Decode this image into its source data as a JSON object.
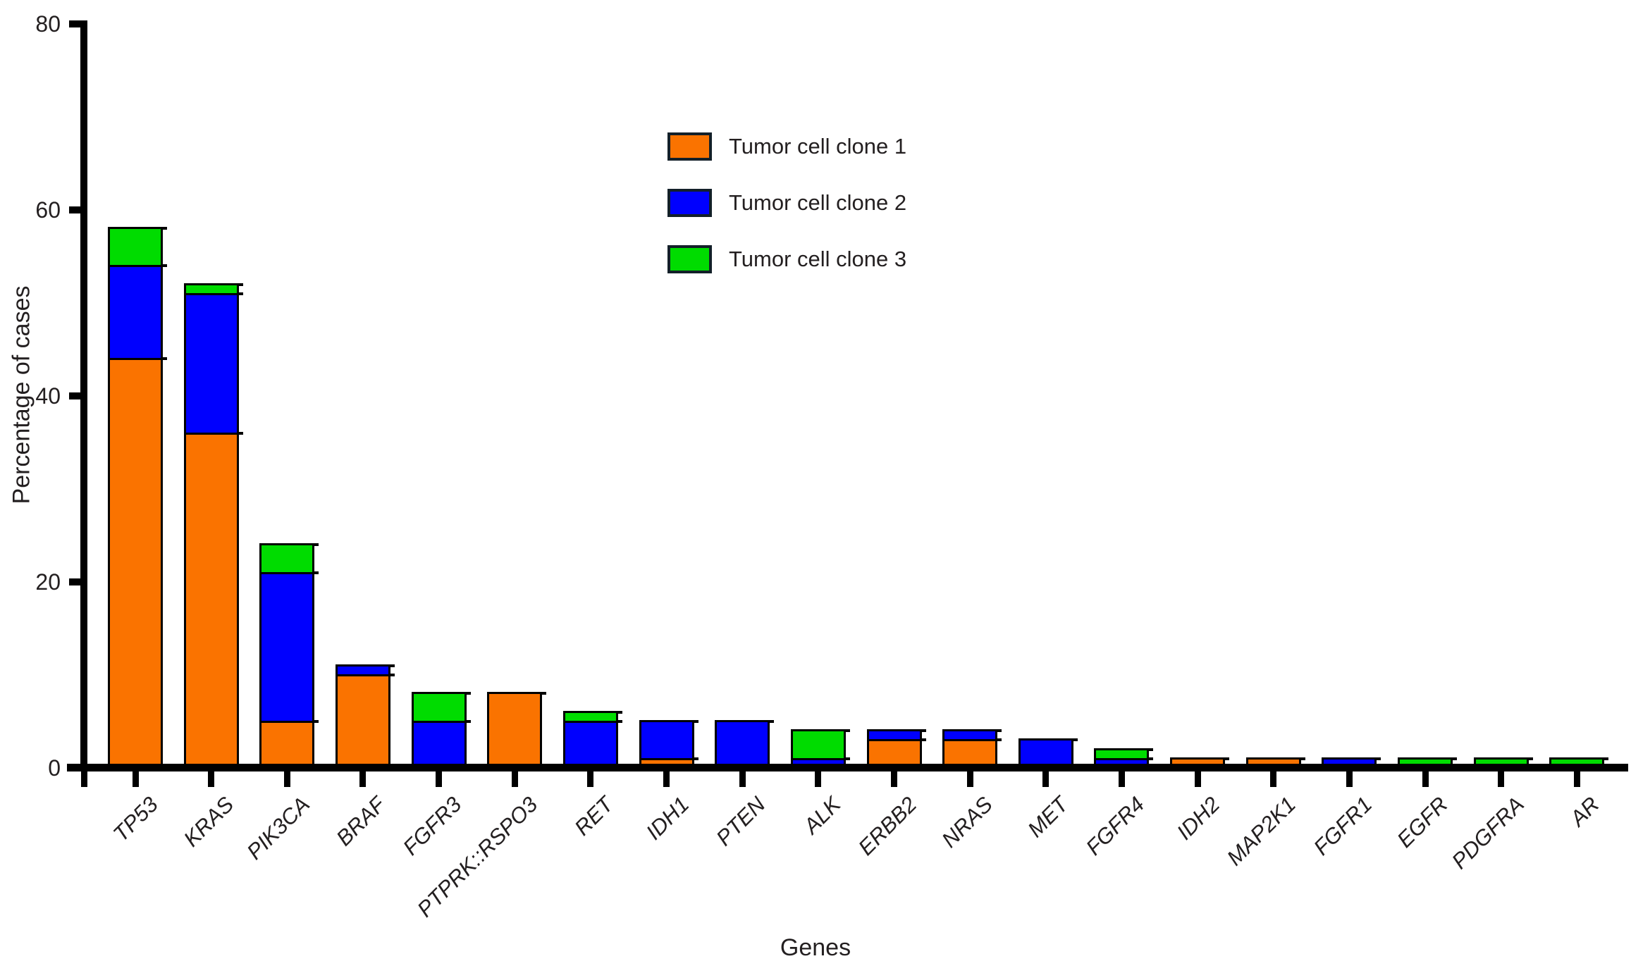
{
  "figure": {
    "background": "#ffffff",
    "text_color": "#231f20",
    "axis_color": "#000000",
    "bar_outline_color": "#000000",
    "legend_swatch_border_color": "#132029"
  },
  "chart_data": {
    "type": "bar",
    "stacked": true,
    "title": "",
    "xlabel": "Genes",
    "ylabel": "Percentage of cases",
    "ylim": [
      0,
      80
    ],
    "yticks": [
      0,
      20,
      40,
      60,
      80
    ],
    "grid": false,
    "legend_position": "inside upper-center",
    "categories": [
      "TP53",
      "KRAS",
      "PIK3CA",
      "BRAF",
      "FGFR3",
      "PTPRK::RSPO3",
      "RET",
      "IDH1",
      "PTEN",
      "ALK",
      "ERBB2",
      "NRAS",
      "MET",
      "FGFR4",
      "IDH2",
      "MAP2K1",
      "FGFR1",
      "EGFR",
      "PDGFRA",
      "AR"
    ],
    "series": [
      {
        "name": "Tumor cell clone 1",
        "color": "#FA7300",
        "values": [
          44,
          36,
          5,
          10,
          0,
          8,
          0,
          1,
          0,
          0,
          3,
          3,
          0,
          0,
          1,
          1,
          0,
          0,
          0,
          0
        ]
      },
      {
        "name": "Tumor cell clone 2",
        "color": "#0000FE",
        "values": [
          10,
          15,
          16,
          1,
          5,
          0,
          5,
          4,
          5,
          1,
          1,
          1,
          3,
          1,
          0,
          0,
          1,
          0,
          0,
          0
        ]
      },
      {
        "name": "Tumor cell clone 3",
        "color": "#00DC00",
        "values": [
          4,
          1,
          3,
          0,
          3,
          0,
          1,
          0,
          0,
          3,
          0,
          0,
          0,
          1,
          0,
          0,
          0,
          1,
          1,
          1
        ]
      }
    ],
    "stacked_totals": [
      58,
      52,
      24,
      11,
      8,
      8,
      6,
      5,
      5,
      4,
      4,
      4,
      3,
      2,
      1,
      1,
      1,
      1,
      1,
      1
    ]
  }
}
